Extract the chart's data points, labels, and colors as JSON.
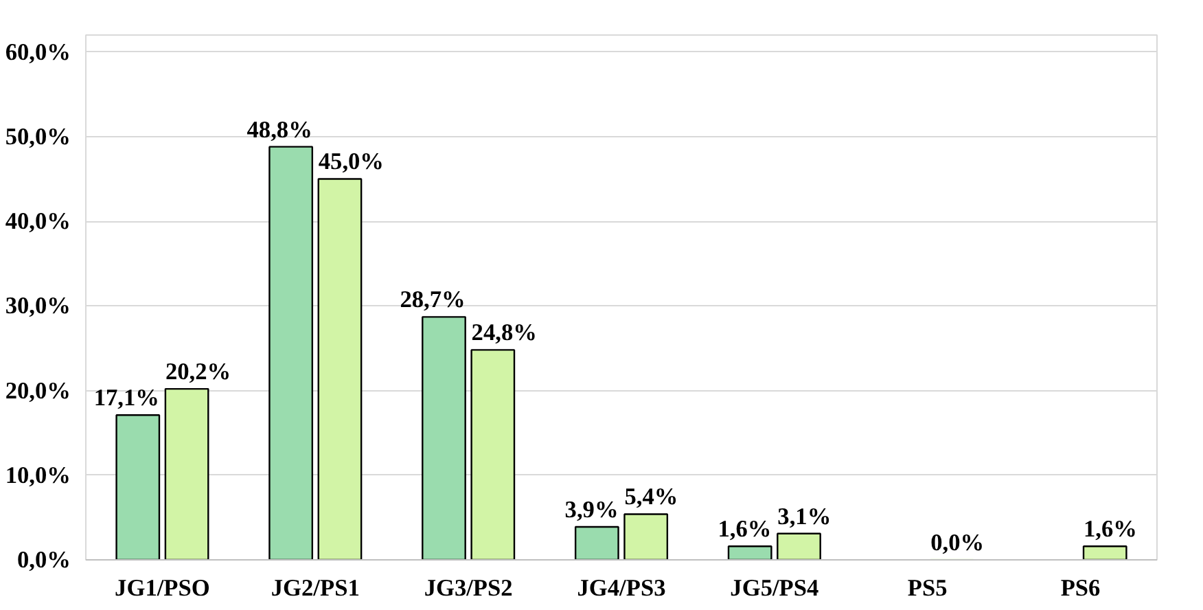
{
  "chart_data": {
    "type": "bar",
    "categories": [
      "JG1/PSO",
      "JG2/PS1",
      "JG3/PS2",
      "JG4/PS3",
      "JG5/PS4",
      "PS5",
      "PS6"
    ],
    "series": [
      {
        "color": "#9adcae",
        "values": [
          17.1,
          48.8,
          28.7,
          3.9,
          1.6,
          null,
          null
        ],
        "value_labels": [
          "17,1%",
          "48,8%",
          "28,7%",
          "3,9%",
          "1,6%",
          null,
          null
        ]
      },
      {
        "color": "#d2f4a6",
        "values": [
          20.2,
          45.0,
          24.8,
          5.4,
          3.1,
          0.0,
          1.6
        ],
        "value_labels": [
          "20,2%",
          "45,0%",
          "24,8%",
          "5,4%",
          "3,1%",
          "0,0%",
          "1,6%"
        ]
      }
    ],
    "ylim": [
      0,
      62
    ],
    "yticks": [
      {
        "value": 0,
        "label": "0,0%"
      },
      {
        "value": 10,
        "label": "10,0%"
      },
      {
        "value": 20,
        "label": "20,0%"
      },
      {
        "value": 30,
        "label": "30,0%"
      },
      {
        "value": 40,
        "label": "40,0%"
      },
      {
        "value": 50,
        "label": "50,0%"
      },
      {
        "value": 60,
        "label": "60,0%"
      }
    ],
    "grid": "y"
  }
}
